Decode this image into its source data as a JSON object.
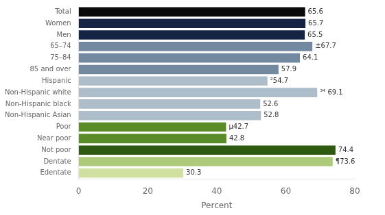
{
  "chart_data": {
    "type": "bar",
    "orientation": "horizontal",
    "categories": [
      "Total",
      "Women",
      "Men",
      "65–74",
      "75–84",
      "85 and over",
      "Hispanic",
      "Non-Hispanic white",
      "Non-Hispanic black",
      "Non-Hispanic Asian",
      "Poor",
      "Near poor",
      "Not poor",
      "Dentate",
      "Edentate"
    ],
    "values": [
      65.6,
      65.7,
      65.5,
      67.7,
      64.1,
      57.9,
      54.7,
      69.1,
      52.6,
      52.8,
      42.7,
      42.8,
      74.4,
      73.6,
      30.3
    ],
    "value_labels": [
      "65.6",
      "65.7",
      "65.5",
      "±67.7",
      "64.1",
      "57.9",
      "²54.7",
      "³⁴ 69.1",
      "52.6",
      "52.8",
      "µ42.7",
      "42.8",
      "74.4",
      "¶73.6",
      "30.3"
    ],
    "colors": [
      "#0a0a0a",
      "#152444",
      "#152444",
      "#7389a0",
      "#7389a0",
      "#7389a0",
      "#adbdca",
      "#adbdca",
      "#adbdca",
      "#adbdca",
      "#5b8c2a",
      "#5b8c2a",
      "#2d5a10",
      "#adc97a",
      "#cfe0a0"
    ],
    "xlabel": "Percent",
    "xlim": [
      0,
      80
    ],
    "xticks": [
      0,
      20,
      40,
      60,
      80
    ],
    "data_labels": true,
    "grid": false
  }
}
